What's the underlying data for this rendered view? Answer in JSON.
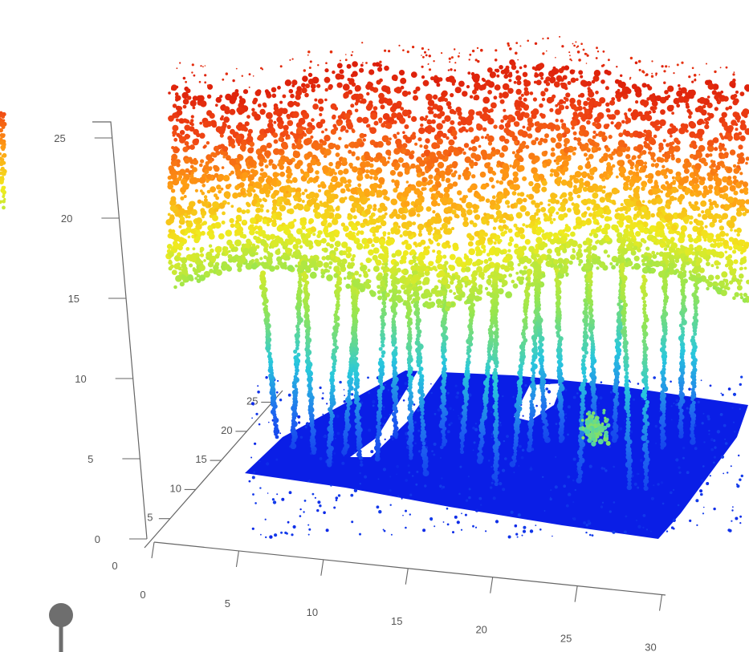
{
  "chart_data": {
    "type": "scatter",
    "subtype": "3d-point-cloud",
    "title": "",
    "xlabel": "",
    "ylabel": "",
    "zlabel": "",
    "x_ticks": [
      "0",
      "5",
      "10",
      "15",
      "20",
      "25",
      "30"
    ],
    "y_ticks": [
      "0",
      "5",
      "10",
      "15",
      "20",
      "25"
    ],
    "z_ticks": [
      "0",
      "5",
      "10",
      "15",
      "20",
      "25"
    ],
    "xlim": [
      0,
      30
    ],
    "ylim": [
      0,
      27
    ],
    "zlim": [
      0,
      26
    ],
    "colormap": "jet",
    "color_by": "z",
    "colormap_stops": [
      "#0a1ee6",
      "#1e64f0",
      "#28c8dc",
      "#96e650",
      "#f0eb1e",
      "#ffa014",
      "#f04614",
      "#dc1e0a"
    ],
    "ground_color": "#0a1ee6",
    "grid": false,
    "legend": "none"
  }
}
